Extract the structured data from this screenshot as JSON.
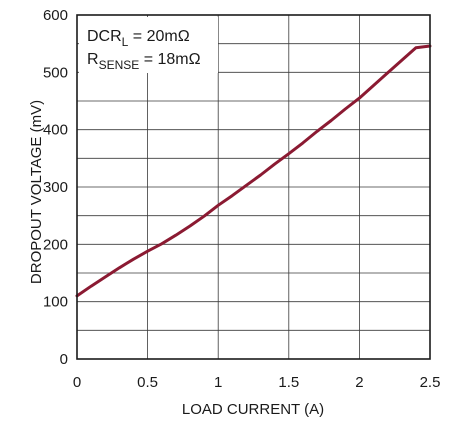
{
  "chart_data": {
    "type": "line",
    "title": "",
    "xlabel": "LOAD CURRENT (A)",
    "ylabel": "DROPOUT VOLTAGE (mV)",
    "xlim": [
      0,
      2.5
    ],
    "ylim": [
      0,
      600
    ],
    "x_ticks": [
      "0",
      "0.5",
      "1",
      "1.5",
      "2",
      "2.5"
    ],
    "y_ticks": [
      "0",
      "100",
      "200",
      "300",
      "400",
      "500",
      "600"
    ],
    "grid": true,
    "series": [
      {
        "x": [
          0,
          0.1,
          0.2,
          0.3,
          0.4,
          0.5,
          0.6,
          0.7,
          0.8,
          0.9,
          1.0,
          1.1,
          1.2,
          1.3,
          1.4,
          1.5,
          1.6,
          1.7,
          1.8,
          1.9,
          2.0,
          2.1,
          2.2,
          2.3,
          2.4,
          2.5
        ],
        "y": [
          110,
          127,
          143,
          159,
          174,
          188,
          201,
          216,
          232,
          249,
          268,
          285,
          303,
          321,
          340,
          358,
          377,
          397,
          416,
          436,
          455,
          477,
          499,
          521,
          543,
          546
        ]
      }
    ],
    "annotation": {
      "line1_main": "DCR",
      "line1_sub": "L",
      "line1_value": " = 20mΩ",
      "line2_main": "R",
      "line2_sub": "SENSE",
      "line2_value": " = 18mΩ"
    },
    "colors": {
      "line": "#8b1a32",
      "grid": "#3a3a3a",
      "frame": "#1a1a1a"
    }
  }
}
